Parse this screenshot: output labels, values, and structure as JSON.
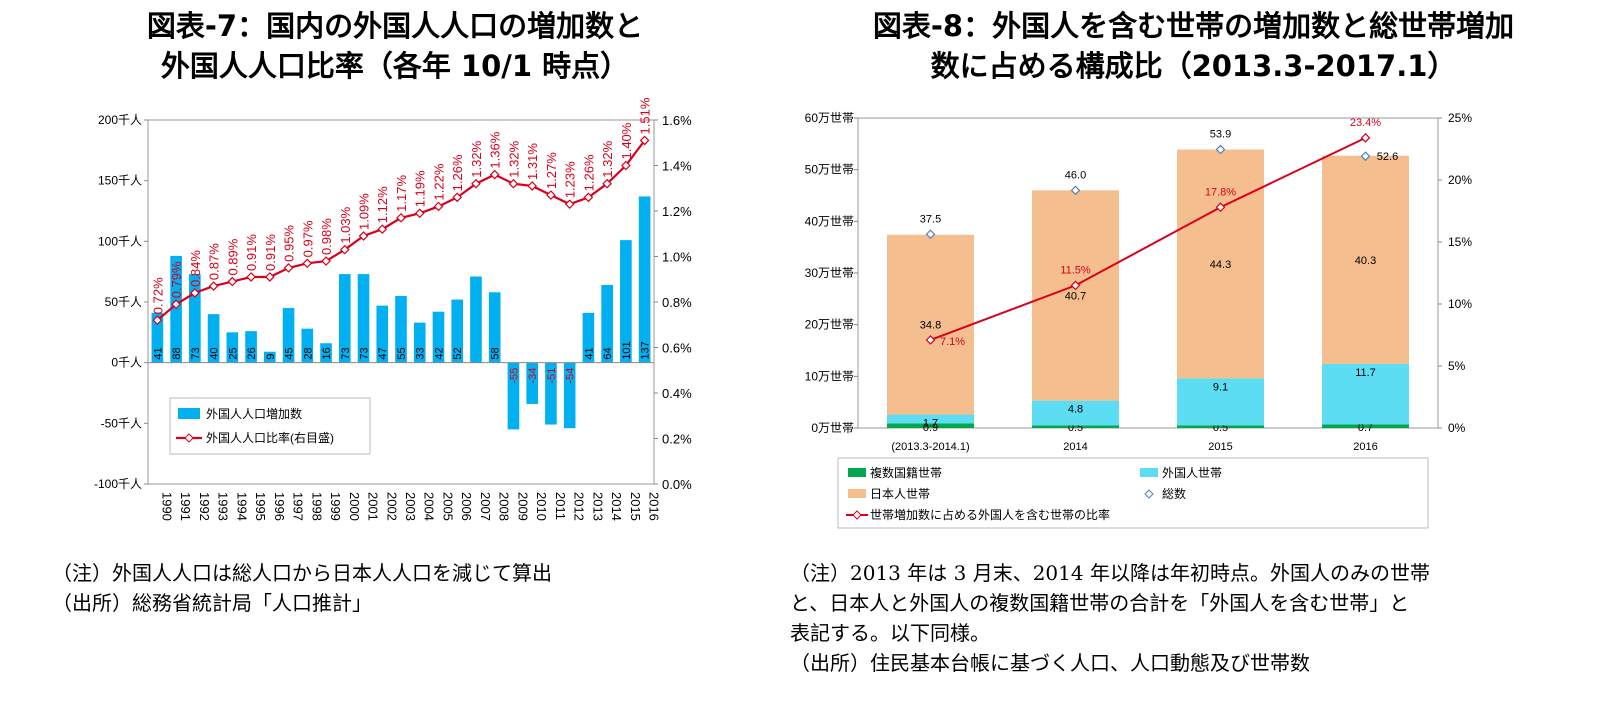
{
  "left_title": {
    "line1": "図表-7：国内の外国人人口の増加数と",
    "line2": "外国人人口比率（各年 10/1 時点）"
  },
  "right_title": {
    "line1": "図表-8：外国人を含む世帯の増加数と総世帯増加",
    "line2": "数に占める構成比（2013.3-2017.1）"
  },
  "left_notes": {
    "note": "（注）外国人人口は総人口から日本人人口を減じて算出",
    "source": "（出所）総務省統計局「人口推計」"
  },
  "right_notes": {
    "line1": "（注）2013 年は 3 月末、2014 年以降は年初時点。外国人のみの世帯",
    "line2": "と、日本人と外国人の複数国籍世帯の合計を「外国人を含む世帯」と",
    "line3": "表記する。以下同様。",
    "source": "（出所）住民基本台帳に基づく人口、人口動態及び世帯数"
  },
  "colors": {
    "cyan": "#00B0F0",
    "red": "#D9001B",
    "peach": "#F4BE8E",
    "lightblue": "#5CDDF4",
    "green": "#00A650",
    "diamond": "#4F81BD"
  },
  "chart_data": [
    {
      "type": "bar+line",
      "title": "図表-7：国内の外国人人口の増加数と外国人人口比率（各年 10/1 時点）",
      "categories": [
        "1990",
        "1991",
        "1992",
        "1993",
        "1994",
        "1995",
        "1996",
        "1997",
        "1998",
        "1999",
        "2000",
        "2001",
        "2002",
        "2003",
        "2004",
        "2005",
        "2006",
        "2007",
        "2008",
        "2009",
        "2010",
        "2011",
        "2012",
        "2013",
        "2014",
        "2015",
        "2016"
      ],
      "series": [
        {
          "name": "外国人人口増加数",
          "type": "bar",
          "axis": "left",
          "values": [
            41,
            88,
            73,
            40,
            25,
            26,
            9,
            45,
            28,
            16,
            73,
            73,
            47,
            55,
            33,
            42,
            52,
            71,
            58,
            -55,
            -34,
            -51,
            -54,
            41,
            64,
            101,
            137
          ],
          "labels": [
            "41",
            "88",
            "73",
            "40",
            "25",
            "26",
            "9",
            "45",
            "28",
            "16",
            "73",
            "73",
            "47",
            "55",
            "33",
            "42",
            "52",
            "",
            "58",
            "-55",
            "-34",
            "-51",
            "-54",
            "41",
            "64",
            "101",
            "137"
          ]
        },
        {
          "name": "外国人人口比率(右目盛)",
          "type": "line",
          "axis": "right",
          "values": [
            0.72,
            0.79,
            0.84,
            0.87,
            0.89,
            0.91,
            0.91,
            0.95,
            0.97,
            0.98,
            1.03,
            1.09,
            1.12,
            1.17,
            1.19,
            1.22,
            1.26,
            1.32,
            1.36,
            1.32,
            1.31,
            1.27,
            1.23,
            1.26,
            1.32,
            1.4,
            1.51
          ],
          "labels": [
            "0.72%",
            "0.79%",
            "0.84%",
            "0.87%",
            "0.89%",
            "0.91%",
            "0.91%",
            "0.95%",
            "0.97%",
            "0.98%",
            "1.03%",
            "1.09%",
            "1.12%",
            "1.17%",
            "1.19%",
            "1.22%",
            "1.26%",
            "1.32%",
            "1.36%",
            "1.32%",
            "1.31%",
            "1.27%",
            "1.23%",
            "1.26%",
            "1.32%",
            "1.40%",
            "1.51%"
          ]
        }
      ],
      "y_left": {
        "min": -100,
        "max": 200,
        "ticks": [
          200,
          150,
          100,
          50,
          0,
          -50,
          -100
        ],
        "tick_labels": [
          "200千人",
          "150千人",
          "100千人",
          "50千人",
          "0千人",
          "-50千人",
          "-100千人"
        ]
      },
      "y_right": {
        "min": 0,
        "max": 1.6,
        "ticks": [
          1.6,
          1.4,
          1.2,
          1.0,
          0.8,
          0.6,
          0.4,
          0.2,
          0.0
        ],
        "tick_labels": [
          "1.6%",
          "1.4%",
          "1.2%",
          "1.0%",
          "0.8%",
          "0.6%",
          "0.4%",
          "0.2%",
          "0.0%"
        ]
      },
      "legend": [
        "外国人人口増加数",
        "外国人人口比率(右目盛)"
      ],
      "legend_position": "lower-left"
    },
    {
      "type": "stacked-bar+line",
      "title": "図表-8：外国人を含む世帯の増加数と総世帯増加数に占める構成比（2013.3-2017.1）",
      "categories": [
        "(2013.3-2014.1)",
        "2014",
        "2015",
        "2016"
      ],
      "series": [
        {
          "name": "複数国籍世帯",
          "type": "bar",
          "values": [
            0.9,
            0.5,
            0.5,
            0.7
          ],
          "labels": [
            "0.9",
            "0.5",
            "0.5",
            "0.7"
          ]
        },
        {
          "name": "外国人世帯",
          "type": "bar",
          "values": [
            1.7,
            4.8,
            9.1,
            11.7
          ],
          "labels": [
            "1.7",
            "4.8",
            "9.1",
            "11.7"
          ]
        },
        {
          "name": "日本人世帯",
          "type": "bar",
          "values": [
            34.8,
            40.7,
            44.3,
            40.3
          ],
          "labels": [
            "34.8",
            "40.7",
            "44.3",
            "40.3"
          ]
        },
        {
          "name": "総数",
          "type": "marker",
          "values": [
            37.5,
            46.0,
            53.9,
            52.6
          ],
          "labels": [
            "37.5",
            "46.0",
            "53.9",
            "52.6"
          ]
        },
        {
          "name": "世帯増加数に占める外国人を含む世帯の比率",
          "type": "line",
          "axis": "right",
          "values": [
            7.1,
            11.5,
            17.8,
            23.4
          ],
          "labels": [
            "7.1%",
            "11.5%",
            "17.8%",
            "23.4%"
          ]
        }
      ],
      "y_left": {
        "min": 0,
        "max": 60,
        "ticks": [
          60,
          50,
          40,
          30,
          20,
          10,
          0
        ],
        "tick_labels": [
          "60万世帯",
          "50万世帯",
          "40万世帯",
          "30万世帯",
          "20万世帯",
          "10万世帯",
          "0万世帯"
        ]
      },
      "y_right": {
        "min": 0,
        "max": 25,
        "ticks": [
          25,
          20,
          15,
          10,
          5,
          0
        ],
        "tick_labels": [
          "25%",
          "20%",
          "15%",
          "10%",
          "5%",
          "0%"
        ]
      },
      "legend": [
        "複数国籍世帯",
        "外国人世帯",
        "日本人世帯",
        "総数",
        "世帯増加数に占める外国人を含む世帯の比率"
      ],
      "legend_position": "bottom"
    }
  ]
}
